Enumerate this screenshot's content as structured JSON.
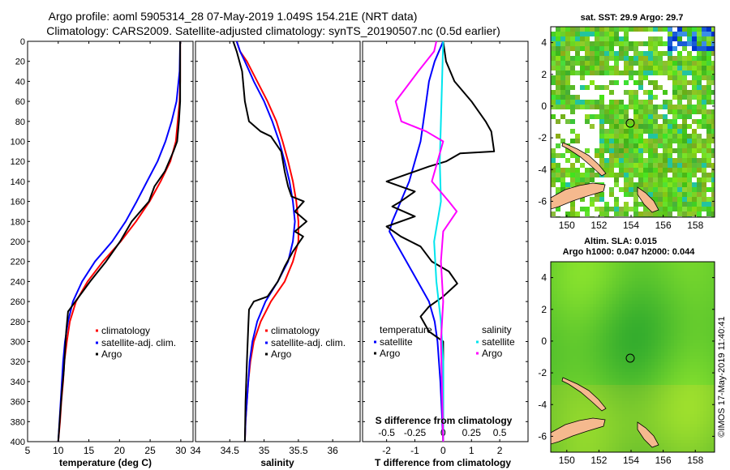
{
  "header": {
    "line1": "Argo profile: aoml 5905314_28 07-May-2019 1.049S 154.21E (NRT data)",
    "line2": "Climatology: CARS2009. Satellite-adjusted climatology: synTS_20190507.nc (0.5d earlier)"
  },
  "imos_stamp": "©IMOS 17-May-2019 11:40:41",
  "colors": {
    "climatology": "#ff0000",
    "satellite": "#0000ff",
    "argo": "#000000",
    "sat_salinity": "#00e5ee",
    "argo_salinity": "#ff00ff",
    "land": "#f5b98e",
    "map_green": "#6fd33c"
  },
  "chart_data": [
    {
      "type": "line",
      "title": "",
      "xlabel": "temperature (deg C)",
      "ylabel": "",
      "xlim": [
        5,
        32
      ],
      "ylim": [
        400,
        0
      ],
      "x_ticks": [
        "5",
        "10",
        "15",
        "20",
        "25",
        "30"
      ],
      "y_ticks": [
        "0",
        "20",
        "40",
        "60",
        "80",
        "100",
        "120",
        "140",
        "160",
        "180",
        "200",
        "220",
        "240",
        "260",
        "280",
        "300",
        "320",
        "340",
        "360",
        "380",
        "400"
      ],
      "legend": [
        {
          "label": "climatology",
          "color": "#ff0000"
        },
        {
          "label": "satellite-adj. clim.",
          "color": "#0000ff"
        },
        {
          "label": "Argo",
          "color": "#000000"
        }
      ],
      "series": [
        {
          "name": "climatology",
          "color": "#ff0000",
          "points": [
            [
              29.9,
              0
            ],
            [
              29.9,
              40
            ],
            [
              29.8,
              60
            ],
            [
              29.5,
              80
            ],
            [
              29.2,
              100
            ],
            [
              28.3,
              120
            ],
            [
              26.7,
              140
            ],
            [
              24.9,
              160
            ],
            [
              22.7,
              180
            ],
            [
              20.2,
              200
            ],
            [
              17.3,
              220
            ],
            [
              14.8,
              240
            ],
            [
              12.9,
              260
            ],
            [
              11.9,
              280
            ],
            [
              11.4,
              300
            ],
            [
              11.0,
              320
            ],
            [
              10.8,
              340
            ],
            [
              10.5,
              360
            ],
            [
              10.3,
              380
            ],
            [
              10.0,
              400
            ]
          ]
        },
        {
          "name": "satellite-adj. clim.",
          "color": "#0000ff",
          "points": [
            [
              29.9,
              0
            ],
            [
              29.8,
              30
            ],
            [
              29.3,
              60
            ],
            [
              28.5,
              80
            ],
            [
              27.5,
              100
            ],
            [
              26.2,
              120
            ],
            [
              24.5,
              140
            ],
            [
              22.8,
              160
            ],
            [
              21.0,
              180
            ],
            [
              18.8,
              200
            ],
            [
              16.0,
              220
            ],
            [
              13.9,
              240
            ],
            [
              12.4,
              260
            ],
            [
              11.6,
              280
            ],
            [
              11.1,
              300
            ],
            [
              10.8,
              320
            ],
            [
              10.6,
              340
            ],
            [
              10.4,
              360
            ],
            [
              10.2,
              380
            ],
            [
              10.0,
              400
            ]
          ]
        },
        {
          "name": "Argo",
          "color": "#000000",
          "points": [
            [
              29.9,
              0
            ],
            [
              29.9,
              40
            ],
            [
              29.9,
              60
            ],
            [
              29.7,
              80
            ],
            [
              29.4,
              100
            ],
            [
              28.8,
              110
            ],
            [
              27.4,
              130
            ],
            [
              25.7,
              145
            ],
            [
              24.8,
              160
            ],
            [
              22.0,
              180
            ],
            [
              20.1,
              200
            ],
            [
              17.8,
              220
            ],
            [
              15.2,
              240
            ],
            [
              12.8,
              260
            ],
            [
              11.6,
              270
            ],
            [
              11.3,
              290
            ],
            [
              11.1,
              310
            ],
            [
              10.9,
              330
            ],
            [
              10.6,
              350
            ],
            [
              10.3,
              375
            ],
            [
              10.0,
              400
            ]
          ]
        }
      ]
    },
    {
      "type": "line",
      "title": "",
      "xlabel": "salinity",
      "ylabel": "",
      "xlim": [
        34,
        36.4
      ],
      "ylim": [
        400,
        0
      ],
      "x_ticks": [
        "34",
        "34.5",
        "35",
        "35.5",
        "36"
      ],
      "legend": [
        {
          "label": "climatology",
          "color": "#ff0000"
        },
        {
          "label": "satellite-adj. clim.",
          "color": "#0000ff"
        },
        {
          "label": "Argo",
          "color": "#000000"
        }
      ],
      "series": [
        {
          "name": "climatology",
          "color": "#ff0000",
          "points": [
            [
              34.6,
              0
            ],
            [
              34.65,
              10
            ],
            [
              34.75,
              20
            ],
            [
              34.9,
              40
            ],
            [
              35.05,
              60
            ],
            [
              35.18,
              80
            ],
            [
              35.27,
              100
            ],
            [
              35.35,
              120
            ],
            [
              35.42,
              140
            ],
            [
              35.47,
              160
            ],
            [
              35.5,
              180
            ],
            [
              35.5,
              200
            ],
            [
              35.42,
              220
            ],
            [
              35.3,
              240
            ],
            [
              35.1,
              260
            ],
            [
              34.95,
              280
            ],
            [
              34.85,
              300
            ],
            [
              34.8,
              320
            ],
            [
              34.77,
              340
            ],
            [
              34.75,
              360
            ],
            [
              34.73,
              380
            ],
            [
              34.72,
              400
            ]
          ]
        },
        {
          "name": "satellite-adj. clim.",
          "color": "#0000ff",
          "points": [
            [
              34.6,
              0
            ],
            [
              34.65,
              10
            ],
            [
              34.72,
              20
            ],
            [
              34.85,
              40
            ],
            [
              35.0,
              60
            ],
            [
              35.12,
              80
            ],
            [
              35.22,
              100
            ],
            [
              35.3,
              120
            ],
            [
              35.37,
              140
            ],
            [
              35.42,
              160
            ],
            [
              35.45,
              180
            ],
            [
              35.42,
              200
            ],
            [
              35.35,
              220
            ],
            [
              35.2,
              240
            ],
            [
              35.02,
              260
            ],
            [
              34.9,
              280
            ],
            [
              34.83,
              300
            ],
            [
              34.79,
              320
            ],
            [
              34.77,
              340
            ],
            [
              34.75,
              360
            ],
            [
              34.73,
              380
            ],
            [
              34.72,
              400
            ]
          ]
        },
        {
          "name": "Argo",
          "color": "#000000",
          "points": [
            [
              34.55,
              0
            ],
            [
              34.6,
              10
            ],
            [
              34.68,
              30
            ],
            [
              34.72,
              60
            ],
            [
              34.78,
              80
            ],
            [
              34.95,
              90
            ],
            [
              35.1,
              95
            ],
            [
              35.25,
              110
            ],
            [
              35.3,
              130
            ],
            [
              35.35,
              145
            ],
            [
              35.4,
              155
            ],
            [
              35.58,
              160
            ],
            [
              35.45,
              170
            ],
            [
              35.62,
              180
            ],
            [
              35.45,
              190
            ],
            [
              35.57,
              195
            ],
            [
              35.42,
              210
            ],
            [
              35.3,
              225
            ],
            [
              35.2,
              240
            ],
            [
              35.05,
              255
            ],
            [
              34.85,
              260
            ],
            [
              34.78,
              268
            ],
            [
              34.77,
              285
            ],
            [
              34.75,
              320
            ],
            [
              34.73,
              360
            ],
            [
              34.72,
              400
            ]
          ]
        }
      ]
    },
    {
      "type": "line",
      "title": "",
      "xlabel": "T difference from climatology",
      "xlabel_top": "S difference from climatology",
      "xlim": [
        -2.85,
        3.0
      ],
      "ylim": [
        400,
        0
      ],
      "x_ticks": [
        "-2",
        "-1",
        "0",
        "1",
        "2"
      ],
      "x_ticks_top": [
        "-0.5",
        "-0.25",
        "0",
        "0.25",
        "0.5"
      ],
      "legend_temperature": {
        "title": "temperature",
        "items": [
          {
            "label": "satellite",
            "color": "#0000ff"
          },
          {
            "label": "Argo",
            "color": "#000000"
          }
        ]
      },
      "legend_salinity": {
        "title": "salinity",
        "items": [
          {
            "label": "satellite",
            "color": "#00e5ee"
          },
          {
            "label": "Argo",
            "color": "#ff00ff"
          }
        ]
      },
      "series": [
        {
          "name": "temperature satellite",
          "color": "#0000ff",
          "points": [
            [
              0.0,
              0
            ],
            [
              -0.3,
              20
            ],
            [
              -0.5,
              40
            ],
            [
              -0.6,
              60
            ],
            [
              -0.7,
              80
            ],
            [
              -0.8,
              100
            ],
            [
              -1.0,
              120
            ],
            [
              -1.2,
              140
            ],
            [
              -1.5,
              160
            ],
            [
              -1.8,
              180
            ],
            [
              -1.9,
              190
            ],
            [
              -1.7,
              200
            ],
            [
              -1.3,
              220
            ],
            [
              -0.9,
              240
            ],
            [
              -0.5,
              260
            ],
            [
              -0.3,
              280
            ],
            [
              -0.2,
              300
            ],
            [
              -0.1,
              340
            ],
            [
              0.0,
              400
            ]
          ]
        },
        {
          "name": "temperature Argo",
          "color": "#000000",
          "points": [
            [
              0.0,
              0
            ],
            [
              0.1,
              20
            ],
            [
              0.4,
              40
            ],
            [
              1.0,
              60
            ],
            [
              1.5,
              80
            ],
            [
              1.7,
              90
            ],
            [
              1.8,
              110
            ],
            [
              0.6,
              112
            ],
            [
              0.1,
              120
            ],
            [
              -0.5,
              125
            ],
            [
              -1.5,
              135
            ],
            [
              -2.0,
              140
            ],
            [
              -1.0,
              150
            ],
            [
              -1.5,
              160
            ],
            [
              -1.8,
              165
            ],
            [
              -1.0,
              175
            ],
            [
              -2.0,
              185
            ],
            [
              -1.5,
              195
            ],
            [
              -0.8,
              205
            ],
            [
              -0.4,
              220
            ],
            [
              0.2,
              230
            ],
            [
              0.5,
              242
            ],
            [
              0.0,
              255
            ],
            [
              -0.5,
              265
            ],
            [
              -0.8,
              275
            ],
            [
              -0.5,
              290
            ],
            [
              0.0,
              300
            ],
            [
              0.0,
              400
            ]
          ]
        },
        {
          "name": "salinity satellite",
          "color": "#00e5ee",
          "points": [
            [
              0.0,
              0
            ],
            [
              -0.01,
              40
            ],
            [
              -0.02,
              80
            ],
            [
              -0.03,
              120
            ],
            [
              -0.02,
              160
            ],
            [
              -0.08,
              200
            ],
            [
              -0.06,
              240
            ],
            [
              -0.02,
              280
            ],
            [
              0.0,
              320
            ],
            [
              0.0,
              400
            ]
          ]
        },
        {
          "name": "salinity Argo",
          "color": "#ff00ff",
          "points": [
            [
              -0.06,
              0
            ],
            [
              -0.08,
              10
            ],
            [
              -0.22,
              30
            ],
            [
              -0.42,
              60
            ],
            [
              -0.37,
              80
            ],
            [
              -0.15,
              90
            ],
            [
              0.0,
              100
            ],
            [
              -0.05,
              120
            ],
            [
              -0.1,
              140
            ],
            [
              0.05,
              160
            ],
            [
              0.12,
              170
            ],
            [
              0.0,
              190
            ],
            [
              -0.02,
              220
            ],
            [
              0.0,
              260
            ],
            [
              -0.02,
              300
            ],
            [
              0.0,
              400
            ]
          ]
        }
      ]
    }
  ],
  "maps": {
    "top": {
      "title": "sat. SST: 29.9 Argo: 29.7",
      "x_ticks": [
        "150",
        "152",
        "154",
        "156",
        "158"
      ],
      "y_ticks": [
        "4",
        "2",
        "0",
        "-2",
        "-4",
        "-6"
      ]
    },
    "bottom": {
      "title_line1": "Altim. SLA: 0.015",
      "title_line2": "Argo h1000: 0.047 h2000: 0.044",
      "x_ticks": [
        "150",
        "152",
        "154",
        "156",
        "158"
      ],
      "y_ticks": [
        "4",
        "2",
        "0",
        "-2",
        "-4",
        "-6"
      ]
    }
  }
}
